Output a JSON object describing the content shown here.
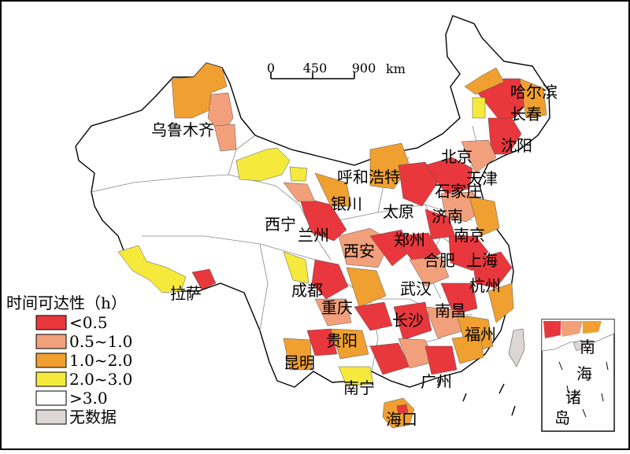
{
  "scale_bar": {
    "ticks": [
      "0",
      "450",
      "900"
    ],
    "unit": "km"
  },
  "legend": {
    "title": "时间可达性（h）",
    "items": [
      {
        "label": "<0.5",
        "color": "#e8383d"
      },
      {
        "label": "0.5~1.0",
        "color": "#f2a07b"
      },
      {
        "label": "1.0~2.0",
        "color": "#f0a030"
      },
      {
        "label": "2.0~3.0",
        "color": "#f5ea3c"
      },
      {
        "label": ">3.0",
        "color": "#ffffff"
      },
      {
        "label": "无数据",
        "color": "#dcd7d6"
      }
    ]
  },
  "cities": [
    "哈尔滨",
    "长春",
    "沈阳",
    "乌鲁木齐",
    "北京",
    "天津",
    "呼和浩特",
    "石家庄",
    "银川",
    "太原",
    "济南",
    "西宁",
    "兰州",
    "南京",
    "西安",
    "郑州",
    "合肥",
    "上海",
    "成都",
    "武汉",
    "杭州",
    "拉萨",
    "重庆",
    "南昌",
    "长沙",
    "福州",
    "贵阳",
    "昆明",
    "南宁",
    "广州",
    "海口"
  ],
  "inset": {
    "label_chars": [
      "南",
      "海",
      "诸",
      "岛"
    ]
  }
}
